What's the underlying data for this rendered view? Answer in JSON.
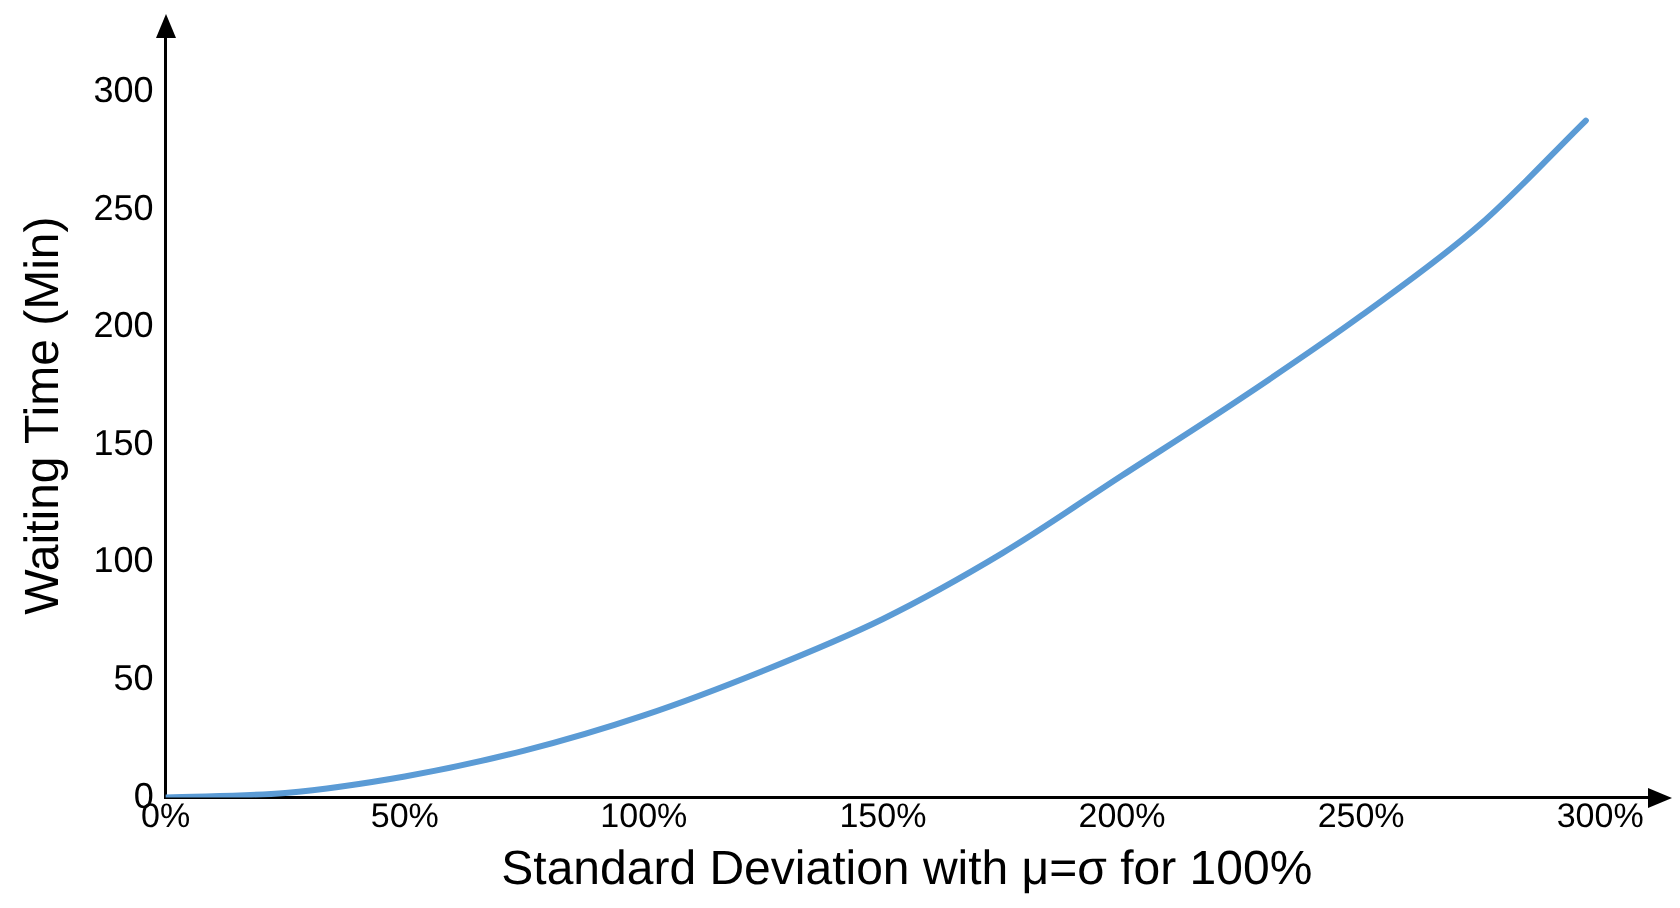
{
  "chart_data": {
    "type": "line",
    "xlabel": "Standard Deviation with μ=σ for 100%",
    "ylabel": "Waiting Time (Min)",
    "x": [
      0,
      25,
      50,
      75,
      100,
      125,
      150,
      175,
      200,
      225,
      250,
      275,
      297
    ],
    "series": [
      {
        "color": "#5b9bd5",
        "values": [
          0,
          2,
          9,
          20,
          35,
          54,
          76,
          104,
          137,
          170,
          205,
          244,
          288
        ]
      }
    ],
    "xlim": [
      0,
      310
    ],
    "ylim": [
      0,
      325
    ],
    "xticks": [
      {
        "value": 0,
        "label": "0%"
      },
      {
        "value": 50,
        "label": "50%"
      },
      {
        "value": 100,
        "label": "100%"
      },
      {
        "value": 150,
        "label": "150%"
      },
      {
        "value": 200,
        "label": "200%"
      },
      {
        "value": 250,
        "label": "250%"
      },
      {
        "value": 300,
        "label": "300%"
      }
    ],
    "yticks": [
      0,
      50,
      100,
      150,
      200,
      250,
      300
    ],
    "grid": false,
    "legend": false,
    "marker": "none",
    "line_style": "solid"
  }
}
